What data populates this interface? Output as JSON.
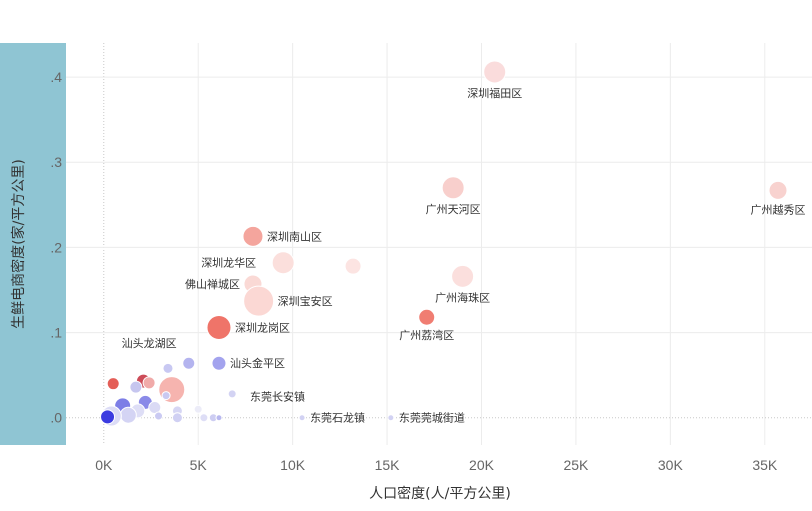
{
  "chart_data": {
    "type": "scatter",
    "xlabel": "人口密度(人/平方公里)",
    "ylabel": "生鲜电商密度(家/平方公里)",
    "xlim": [
      -2000,
      37500
    ],
    "ylim": [
      -0.032,
      0.44
    ],
    "xticks": [
      0,
      5000,
      10000,
      15000,
      20000,
      25000,
      30000,
      35000
    ],
    "xtick_labels": [
      "0K",
      "5K",
      "10K",
      "15K",
      "20K",
      "25K",
      "30K",
      "35K"
    ],
    "yticks": [
      0,
      0.1,
      0.2,
      0.3,
      0.4
    ],
    "ytick_labels": [
      ".0",
      ".1",
      ".2",
      ".3",
      ".4"
    ],
    "grid": true,
    "points": [
      {
        "x": 20700,
        "y": 0.406,
        "size": 11,
        "color": "#fadcdc",
        "label": "深圳福田区"
      },
      {
        "x": 18500,
        "y": 0.27,
        "size": 11,
        "color": "#f8cfcc",
        "label": "广州天河区"
      },
      {
        "x": 35700,
        "y": 0.267,
        "size": 9,
        "color": "#f8d2cf",
        "label": "广州越秀区"
      },
      {
        "x": 7900,
        "y": 0.213,
        "size": 10,
        "color": "#f4a59d",
        "label": "深圳南山区"
      },
      {
        "x": 9500,
        "y": 0.182,
        "size": 11,
        "color": "#fbdfdc",
        "label": "深圳龙华区"
      },
      {
        "x": 13200,
        "y": 0.178,
        "size": 8,
        "color": "#fce4e2",
        "label": ""
      },
      {
        "x": 19000,
        "y": 0.166,
        "size": 11,
        "color": "#fbdfdd",
        "label": "广州海珠区"
      },
      {
        "x": 7900,
        "y": 0.157,
        "size": 9,
        "color": "#fad9d5",
        "label": "佛山禅城区"
      },
      {
        "x": 8200,
        "y": 0.137,
        "size": 15,
        "color": "#fbd8d4",
        "label": "深圳宝安区"
      },
      {
        "x": 17100,
        "y": 0.118,
        "size": 8,
        "color": "#f07d72",
        "label": "广州荔湾区"
      },
      {
        "x": 6100,
        "y": 0.106,
        "size": 12,
        "color": "#ef7469",
        "label": "深圳龙岗区"
      },
      {
        "x": 6100,
        "y": 0.064,
        "size": 7,
        "color": "#a3a3ee",
        "label": "汕头金平区"
      },
      {
        "x": 4500,
        "y": 0.064,
        "size": 6,
        "color": "#b4b4ef",
        "label": ""
      },
      {
        "x": 3400,
        "y": 0.058,
        "size": 5,
        "color": "#c8c8f2",
        "label": ""
      },
      {
        "x": 500,
        "y": 0.04,
        "size": 6,
        "color": "#e45e57",
        "label": ""
      },
      {
        "x": 2100,
        "y": 0.043,
        "size": 7,
        "color": "#cc4b58",
        "label": ""
      },
      {
        "x": 2400,
        "y": 0.041,
        "size": 6,
        "color": "#f0aaa9",
        "label": ""
      },
      {
        "x": 1700,
        "y": 0.036,
        "size": 6,
        "color": "#c6c6ef",
        "label": ""
      },
      {
        "x": 3600,
        "y": 0.033,
        "size": 13,
        "color": "#f6b4af",
        "label": ""
      },
      {
        "x": 6800,
        "y": 0.028,
        "size": 4,
        "color": "#d3d3f3",
        "label": ""
      },
      {
        "x": 3300,
        "y": 0.026,
        "size": 4,
        "color": "#c9c9f1",
        "label": ""
      },
      {
        "x": 2200,
        "y": 0.018,
        "size": 7,
        "color": "#8a8ae8",
        "label": ""
      },
      {
        "x": 1000,
        "y": 0.014,
        "size": 8,
        "color": "#7d7ee6",
        "label": ""
      },
      {
        "x": 2700,
        "y": 0.012,
        "size": 6,
        "color": "#dadaf5",
        "label": ""
      },
      {
        "x": 1800,
        "y": 0.008,
        "size": 7,
        "color": "#dedef6",
        "label": ""
      },
      {
        "x": 3900,
        "y": 0.008,
        "size": 5,
        "color": "#d6d6f4",
        "label": ""
      },
      {
        "x": 5000,
        "y": 0.01,
        "size": 4,
        "color": "#ececf8",
        "label": ""
      },
      {
        "x": 1300,
        "y": 0.003,
        "size": 8,
        "color": "#d4d4f4",
        "label": ""
      },
      {
        "x": 400,
        "y": 0.002,
        "size": 10,
        "color": "#dcdcf6",
        "label": ""
      },
      {
        "x": 200,
        "y": 0.001,
        "size": 7,
        "color": "#3c3ce0",
        "label": ""
      },
      {
        "x": 2900,
        "y": 0.002,
        "size": 4,
        "color": "#cacaf2",
        "label": ""
      },
      {
        "x": 3900,
        "y": 0.0,
        "size": 5,
        "color": "#d0d0f3",
        "label": ""
      },
      {
        "x": 5300,
        "y": 0.0,
        "size": 4,
        "color": "#dedef6",
        "label": ""
      },
      {
        "x": 5800,
        "y": 0.0,
        "size": 4,
        "color": "#cdcdf2",
        "label": ""
      },
      {
        "x": 6100,
        "y": 0.0,
        "size": 3,
        "color": "#b8b8ef",
        "label": ""
      },
      {
        "x": 10500,
        "y": 0.0,
        "size": 3,
        "color": "#d2d2f3",
        "label": "东莞石龙镇"
      },
      {
        "x": 15200,
        "y": 0.0,
        "size": 3,
        "color": "#d2d2f3",
        "label": "东莞莞城街道"
      }
    ],
    "annotations": [
      {
        "text": "汕头龙湖区",
        "x": 2400,
        "y": 0.083
      },
      {
        "text": "东莞长安镇",
        "x": 9200,
        "y": 0.02
      }
    ]
  }
}
